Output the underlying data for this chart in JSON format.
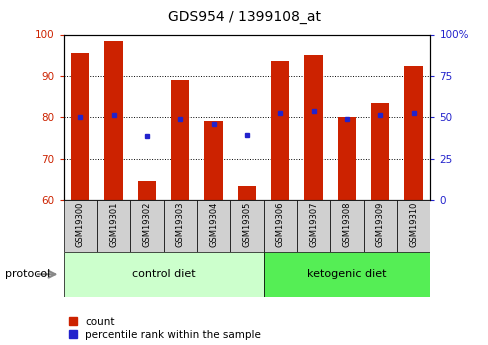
{
  "title": "GDS954 / 1399108_at",
  "samples": [
    "GSM19300",
    "GSM19301",
    "GSM19302",
    "GSM19303",
    "GSM19304",
    "GSM19305",
    "GSM19306",
    "GSM19307",
    "GSM19308",
    "GSM19309",
    "GSM19310"
  ],
  "red_values": [
    95.5,
    98.5,
    64.5,
    89.0,
    79.0,
    63.5,
    93.5,
    95.0,
    80.0,
    83.5,
    92.5
  ],
  "blue_values": [
    80.0,
    80.5,
    75.5,
    79.5,
    78.5,
    75.8,
    81.0,
    81.5,
    79.5,
    80.5,
    81.0
  ],
  "ylim": [
    60,
    100
  ],
  "yticks_left": [
    60,
    70,
    80,
    90,
    100
  ],
  "groups": [
    {
      "label": "control diet",
      "start": 0,
      "end": 5,
      "color": "#ccffcc"
    },
    {
      "label": "ketogenic diet",
      "start": 6,
      "end": 10,
      "color": "#55ee55"
    }
  ],
  "protocol_label": "protocol",
  "bar_color": "#cc2200",
  "dot_color": "#2222cc",
  "bar_width": 0.55,
  "tick_color_left": "#cc2200",
  "tick_color_right": "#2222cc",
  "legend_items": [
    {
      "label": "count",
      "color": "#cc2200"
    },
    {
      "label": "percentile rank within the sample",
      "color": "#2222cc"
    }
  ]
}
